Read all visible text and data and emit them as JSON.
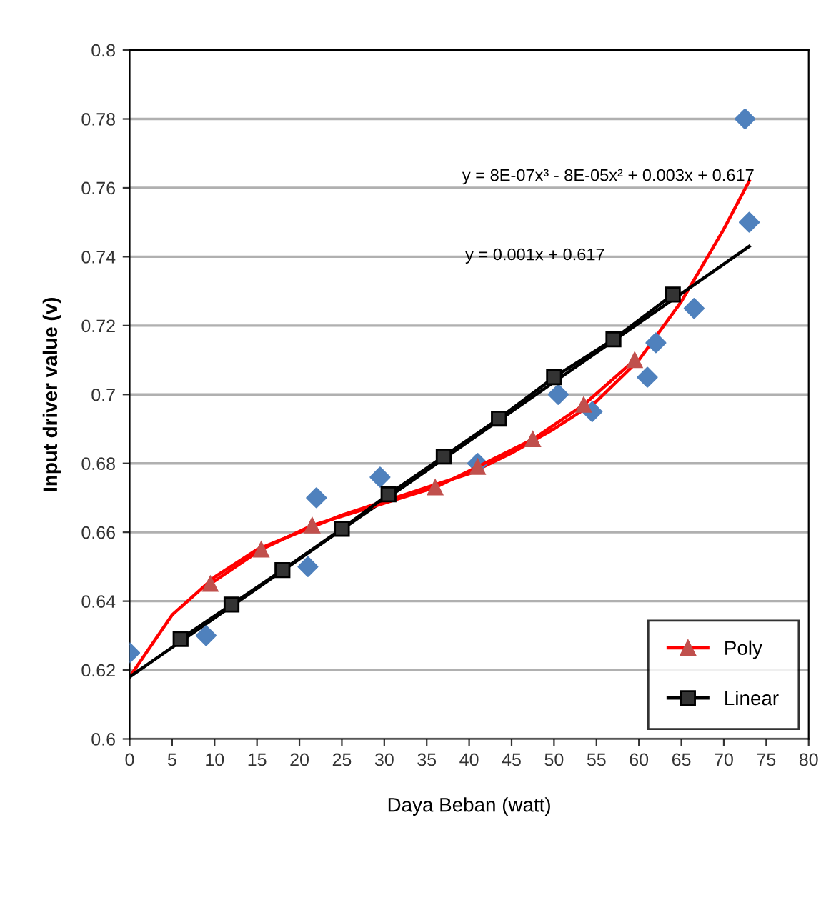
{
  "chart_data": {
    "type": "scatter",
    "xlabel": "Daya Beban (watt)",
    "ylabel": "Input driver value (v)",
    "xlim": [
      0,
      80
    ],
    "xticks": [
      0,
      5,
      10,
      15,
      20,
      25,
      30,
      35,
      40,
      45,
      50,
      55,
      60,
      65,
      70,
      75,
      80
    ],
    "ylim": [
      0.6,
      0.8
    ],
    "yticks": [
      0.6,
      0.62,
      0.64,
      0.66,
      0.68,
      0.7,
      0.72,
      0.74,
      0.76,
      0.78,
      0.8
    ],
    "grid": "y",
    "legend": "bottom right",
    "series": [
      {
        "marker": "diamond",
        "color": "#4f81bd",
        "x": [
          0,
          9,
          21,
          22,
          29.5,
          41,
          50.5,
          54.5,
          61,
          62,
          66.5,
          72.5,
          73
        ],
        "values": [
          0.625,
          0.63,
          0.65,
          0.67,
          0.676,
          0.68,
          0.7,
          0.695,
          0.705,
          0.715,
          0.725,
          0.78,
          0.75
        ]
      },
      {
        "type": "line",
        "marker": "none",
        "color": "#ff0000",
        "x": [
          0,
          5,
          10,
          15,
          20,
          25,
          30,
          35,
          40,
          45,
          50,
          55,
          60,
          65,
          70,
          73
        ],
        "values": [
          0.618,
          0.636,
          0.647,
          0.655,
          0.66,
          0.665,
          0.669,
          0.673,
          0.677,
          0.683,
          0.69,
          0.698,
          0.71,
          0.727,
          0.748,
          0.762
        ]
      },
      {
        "type": "line",
        "marker": "none",
        "color": "#000000",
        "x": [
          0,
          73
        ],
        "values": [
          0.618,
          0.743
        ]
      },
      {
        "type": "line",
        "name": "Poly",
        "marker": "triangle",
        "color": "#ff0000",
        "x": [
          9.5,
          15.5,
          21.5,
          36,
          41,
          47.5,
          53.5,
          59.5
        ],
        "values": [
          0.645,
          0.655,
          0.662,
          0.673,
          0.679,
          0.687,
          0.697,
          0.71
        ]
      },
      {
        "type": "line",
        "name": "Linear",
        "marker": "square",
        "color": "#000000",
        "x": [
          6,
          12,
          18,
          25,
          30.5,
          37,
          43.5,
          50,
          57,
          64
        ],
        "values": [
          0.629,
          0.639,
          0.649,
          0.661,
          0.671,
          0.682,
          0.693,
          0.705,
          0.716,
          0.729
        ]
      }
    ],
    "annotations": [
      "y = 8E-07x³ - 8E-05x² + 0.003x + 0.617",
      "y = 0.001x + 0.617"
    ]
  }
}
